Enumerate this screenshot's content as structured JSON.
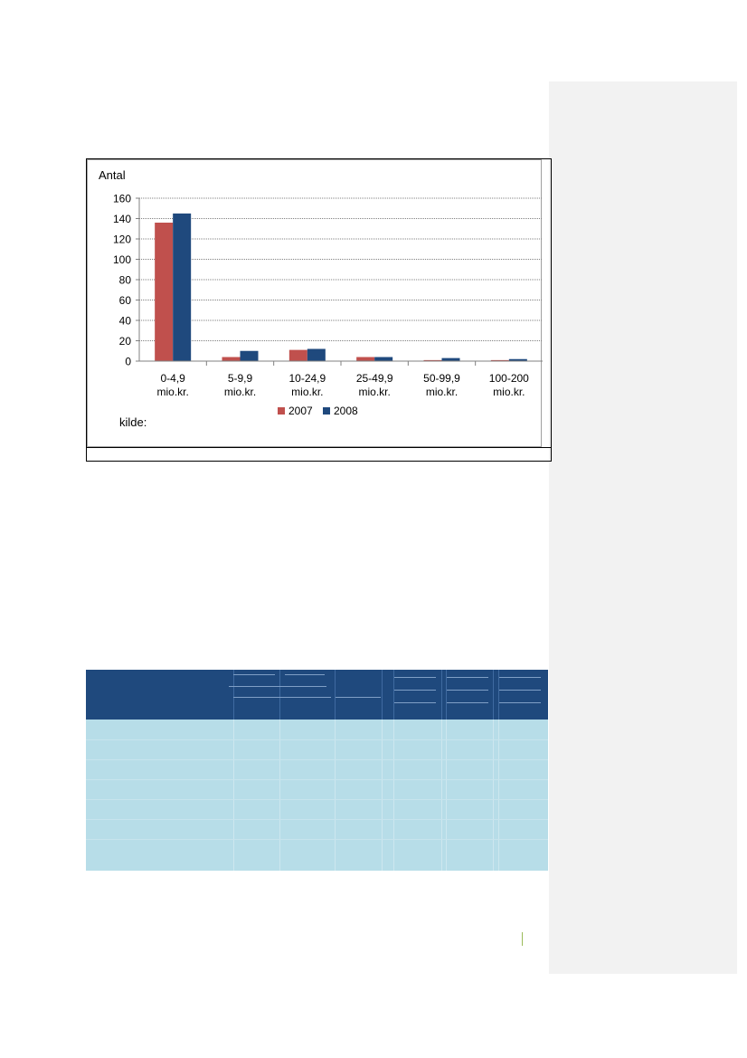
{
  "chart_data": {
    "type": "bar",
    "title": "",
    "ylabel": "Antal",
    "xlabel": "",
    "categories": [
      [
        "0-4,9",
        "mio.kr."
      ],
      [
        "5-9,9",
        "mio.kr."
      ],
      [
        "10-24,9",
        "mio.kr."
      ],
      [
        "25-49,9",
        "mio.kr."
      ],
      [
        "50-99,9",
        "mio.kr."
      ],
      [
        "100-200",
        "mio.kr."
      ]
    ],
    "series": [
      {
        "name": "2007",
        "color": "#c0504d",
        "values": [
          136,
          4,
          11,
          4,
          1,
          1
        ]
      },
      {
        "name": "2008",
        "color": "#1f497d",
        "values": [
          145,
          10,
          12,
          4,
          3,
          2
        ]
      }
    ],
    "ylim": [
      0,
      160
    ],
    "yticks": [
      0,
      20,
      40,
      60,
      80,
      100,
      120,
      140,
      160
    ],
    "grid": true,
    "legend_position": "bottom",
    "source_label": "kilde:"
  }
}
